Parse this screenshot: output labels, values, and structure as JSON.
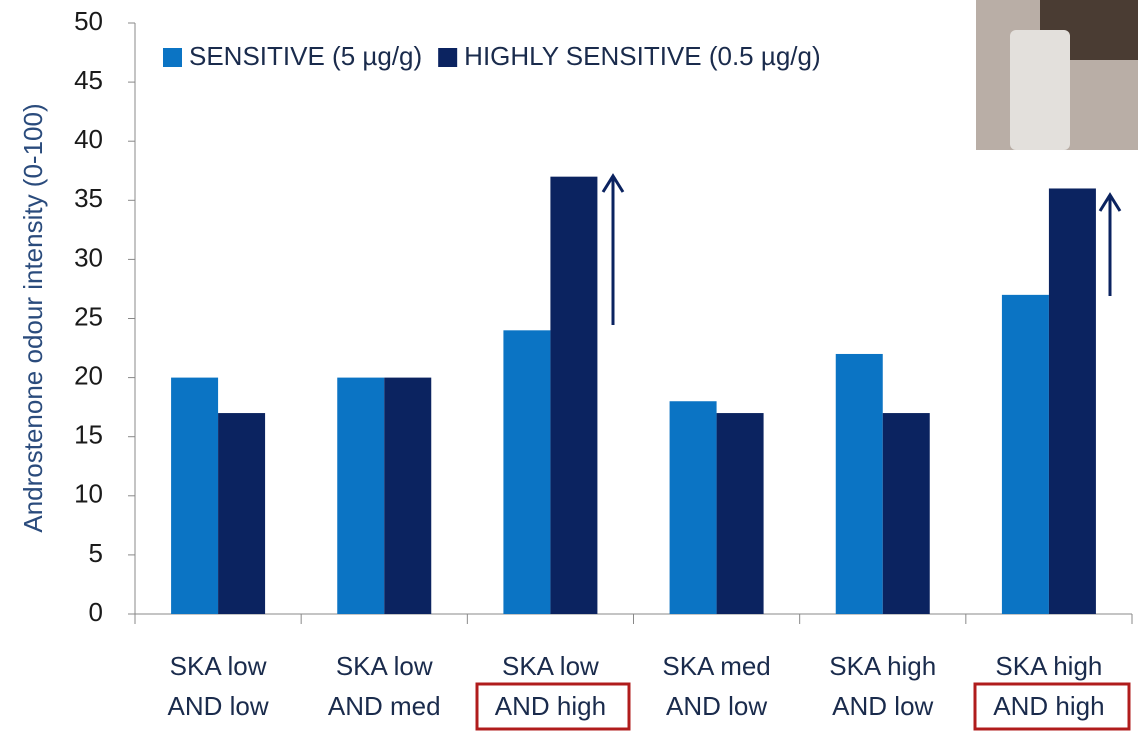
{
  "chart_data": {
    "type": "bar",
    "y_label": "Androstenone odour intensity (0-100)",
    "categories": [
      "SKA low AND low",
      "SKA low AND med",
      "SKA low AND high",
      "SKA med AND low",
      "SKA high AND low",
      "SKA high AND high"
    ],
    "series": [
      {
        "name": "SENSITIVE (5 µg/g)",
        "color": "#0b74c4",
        "values": [
          20,
          20,
          24,
          18,
          22,
          27
        ]
      },
      {
        "name": "HIGHLY SENSITIVE (0.5 µg/g)",
        "color": "#0b2360",
        "values": [
          17,
          20,
          37,
          17,
          17,
          36
        ]
      }
    ],
    "ylim": [
      0,
      50
    ],
    "yticks": [
      0,
      5,
      10,
      15,
      20,
      25,
      30,
      35,
      40,
      45,
      50
    ],
    "grid": false,
    "legend": "top-left"
  }
}
